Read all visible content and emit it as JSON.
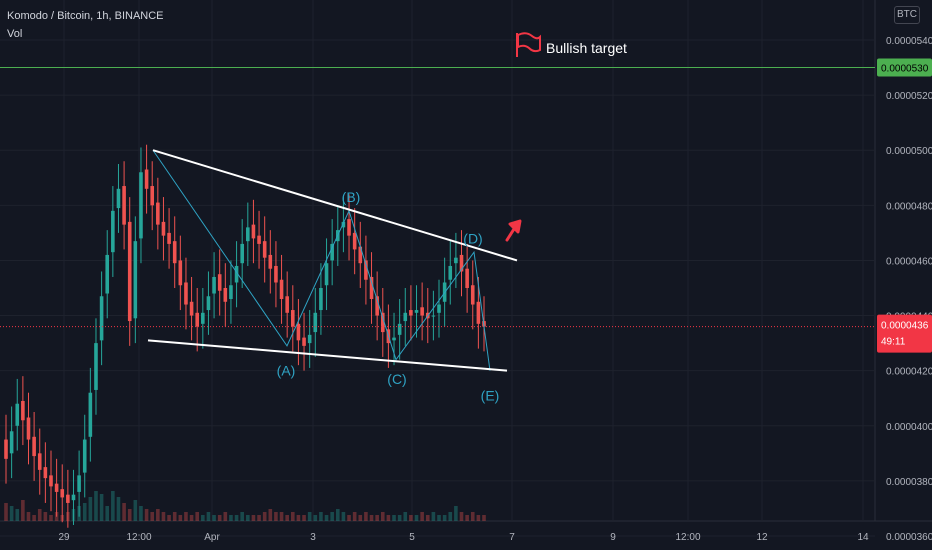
{
  "header": {
    "symbol_line": "Komodo / Bitcoin, 1h, BINANCE",
    "indicator": "Vol",
    "currency": "BTC"
  },
  "colors": {
    "background": "#131722",
    "up_candle": "#26a69a",
    "down_candle": "#ef5350",
    "trendline": "#ffffff",
    "wave": "#2fa3c4",
    "target_line": "#4caf50",
    "price_tag": "#f23645",
    "arrow": "#f23645"
  },
  "annotations": {
    "target_label": "Bullish target",
    "target_icon": "flag-icon",
    "breakout_arrow": "arrow-up-right-icon"
  },
  "chart_data": {
    "type": "candlestick",
    "y_axis_ticks": [
      "0.0000540",
      "0.0000520",
      "0.0000500",
      "0.0000480",
      "0.0000460",
      "0.0000440",
      "0.0000420",
      "0.0000400",
      "0.0000380",
      "0.0000360"
    ],
    "x_axis_ticks": [
      "29",
      "12:00",
      "Apr",
      "3",
      "5",
      "7",
      "9",
      "12:00",
      "12",
      "14"
    ],
    "ylim": [
      3.58e-05,
      5.49e-05
    ],
    "current_price": "0.0000436",
    "countdown": "49:11",
    "target_price": "0.0000530",
    "candles_close": [
      3.88e-05,
      3.98e-05,
      4.08e-05,
      4.02e-05,
      3.95e-05,
      3.89e-05,
      3.84e-05,
      3.81e-05,
      3.78e-05,
      3.76e-05,
      3.74e-05,
      3.72e-05,
      3.75e-05,
      3.82e-05,
      3.95e-05,
      4.12e-05,
      4.3e-05,
      4.47e-05,
      4.62e-05,
      4.78e-05,
      4.86e-05,
      4.73e-05,
      4.38e-05,
      4.67e-05,
      4.92e-05,
      4.86e-05,
      4.8e-05,
      4.73e-05,
      4.69e-05,
      4.66e-05,
      4.59e-05,
      4.51e-05,
      4.44e-05,
      4.4e-05,
      4.36e-05,
      4.41e-05,
      4.47e-05,
      4.54e-05,
      4.49e-05,
      4.45e-05,
      4.51e-05,
      4.58e-05,
      4.66e-05,
      4.72e-05,
      4.68e-05,
      4.66e-05,
      4.61e-05,
      4.57e-05,
      4.52e-05,
      4.46e-05,
      4.41e-05,
      4.36e-05,
      4.31e-05,
      4.29e-05,
      4.33e-05,
      4.41e-05,
      4.5e-05,
      4.59e-05,
      4.66e-05,
      4.71e-05,
      4.74e-05,
      4.69e-05,
      4.64e-05,
      4.59e-05,
      4.53e-05,
      4.46e-05,
      4.4e-05,
      4.34e-05,
      4.3e-05,
      4.32e-05,
      4.37e-05,
      4.41e-05,
      4.4e-05,
      4.42e-05,
      4.4e-05,
      4.39e-05,
      4.4e-05,
      4.44e-05,
      4.52e-05,
      4.58e-05,
      4.61e-05,
      4.56e-05,
      4.5e-05,
      4.44e-05,
      4.37e-05,
      4.36e-05
    ],
    "candles_open": [
      3.95e-05,
      3.9e-05,
      4e-05,
      4.09e-05,
      4.03e-05,
      3.96e-05,
      3.9e-05,
      3.85e-05,
      3.82e-05,
      3.79e-05,
      3.77e-05,
      3.75e-05,
      3.73e-05,
      3.76e-05,
      3.83e-05,
      3.96e-05,
      4.13e-05,
      4.31e-05,
      4.48e-05,
      4.63e-05,
      4.79e-05,
      4.87e-05,
      4.74e-05,
      4.39e-05,
      4.68e-05,
      4.93e-05,
      4.87e-05,
      4.81e-05,
      4.74e-05,
      4.7e-05,
      4.67e-05,
      4.6e-05,
      4.52e-05,
      4.45e-05,
      4.41e-05,
      4.37e-05,
      4.42e-05,
      4.48e-05,
      4.55e-05,
      4.5e-05,
      4.46e-05,
      4.52e-05,
      4.59e-05,
      4.67e-05,
      4.73e-05,
      4.69e-05,
      4.67e-05,
      4.62e-05,
      4.58e-05,
      4.53e-05,
      4.47e-05,
      4.42e-05,
      4.37e-05,
      4.32e-05,
      4.3e-05,
      4.34e-05,
      4.42e-05,
      4.51e-05,
      4.6e-05,
      4.67e-05,
      4.72e-05,
      4.75e-05,
      4.7e-05,
      4.65e-05,
      4.6e-05,
      4.54e-05,
      4.47e-05,
      4.41e-05,
      4.35e-05,
      4.31e-05,
      4.33e-05,
      4.38e-05,
      4.42e-05,
      4.41e-05,
      4.43e-05,
      4.41e-05,
      4.4e-05,
      4.41e-05,
      4.45e-05,
      4.53e-05,
      4.59e-05,
      4.62e-05,
      4.57e-05,
      4.51e-05,
      4.45e-05,
      4.38e-05
    ],
    "volumes": [
      0.6,
      0.5,
      0.4,
      0.7,
      0.3,
      0.2,
      0.4,
      0.3,
      0.2,
      0.3,
      0.2,
      0.3,
      0.4,
      0.5,
      0.6,
      0.8,
      1.0,
      0.9,
      0.5,
      1.0,
      0.8,
      0.6,
      0.4,
      0.7,
      0.5,
      0.4,
      0.3,
      0.4,
      0.3,
      0.2,
      0.3,
      0.2,
      0.3,
      0.2,
      0.3,
      0.2,
      0.3,
      0.2,
      0.2,
      0.3,
      0.2,
      0.2,
      0.3,
      0.2,
      0.2,
      0.2,
      0.3,
      0.4,
      0.3,
      0.3,
      0.2,
      0.3,
      0.2,
      0.2,
      0.3,
      0.2,
      0.3,
      0.2,
      0.3,
      0.4,
      0.3,
      0.2,
      0.3,
      0.2,
      0.3,
      0.2,
      0.2,
      0.3,
      0.2,
      0.2,
      0.2,
      0.3,
      0.2,
      0.2,
      0.3,
      0.2,
      0.3,
      0.2,
      0.2,
      0.3,
      0.5,
      0.3,
      0.2,
      0.3,
      0.2,
      0.2
    ],
    "waves": [
      "(A)",
      "(B)",
      "(C)",
      "(D)",
      "(E)"
    ]
  }
}
